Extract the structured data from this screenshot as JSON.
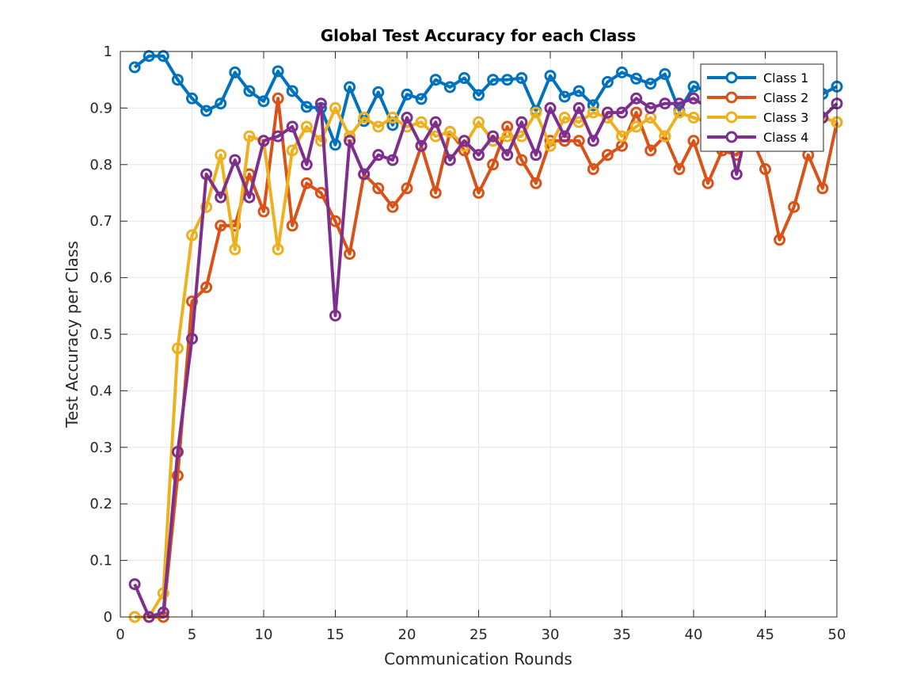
{
  "chart_data": {
    "type": "line",
    "title": "Global Test Accuracy for each Class",
    "xlabel": "Communication Rounds",
    "ylabel": "Test Accuracy per Class",
    "xlim": [
      0,
      50
    ],
    "ylim": [
      0,
      1
    ],
    "grid": true,
    "legend_position": "top-right",
    "x_ticks": [
      "0",
      "5",
      "10",
      "15",
      "20",
      "25",
      "30",
      "35",
      "40",
      "45",
      "50"
    ],
    "y_ticks": [
      "0",
      "0.1",
      "0.2",
      "0.3",
      "0.4",
      "0.5",
      "0.6",
      "0.7",
      "0.8",
      "0.9",
      "1"
    ],
    "x": [
      1,
      2,
      3,
      4,
      5,
      6,
      7,
      8,
      9,
      10,
      11,
      12,
      13,
      14,
      15,
      16,
      17,
      18,
      19,
      20,
      21,
      22,
      23,
      24,
      25,
      26,
      27,
      28,
      29,
      30,
      31,
      32,
      33,
      34,
      35,
      36,
      37,
      38,
      39,
      40,
      41,
      42,
      43,
      44,
      45,
      46,
      47,
      48,
      49,
      50
    ],
    "series": [
      {
        "name": "Class 1",
        "color": "#0072BD",
        "values": [
          0.972,
          0.992,
          0.992,
          0.95,
          0.917,
          0.895,
          0.908,
          0.963,
          0.93,
          0.912,
          0.965,
          0.93,
          0.902,
          0.9,
          0.835,
          0.937,
          0.877,
          0.928,
          0.87,
          0.924,
          0.916,
          0.95,
          0.937,
          0.953,
          0.923,
          0.95,
          0.95,
          0.953,
          0.895,
          0.957,
          0.92,
          0.93,
          0.905,
          0.946,
          0.963,
          0.952,
          0.943,
          0.96,
          0.895,
          0.938,
          0.93,
          0.93,
          0.93,
          0.925,
          0.92,
          0.92,
          0.925,
          0.93,
          0.925,
          0.938
        ]
      },
      {
        "name": "Class 2",
        "color": "#D95319",
        "values": [
          0.0,
          0.0,
          0.0,
          0.25,
          0.558,
          0.583,
          0.692,
          0.692,
          0.783,
          0.717,
          0.917,
          0.692,
          0.767,
          0.75,
          0.7,
          0.642,
          0.783,
          0.758,
          0.725,
          0.758,
          0.833,
          0.75,
          0.858,
          0.825,
          0.75,
          0.8,
          0.867,
          0.808,
          0.767,
          0.842,
          0.842,
          0.842,
          0.792,
          0.817,
          0.833,
          0.892,
          0.825,
          0.85,
          0.792,
          0.842,
          0.767,
          0.825,
          0.817,
          0.85,
          0.792,
          0.667,
          0.725,
          0.817,
          0.758,
          0.875
        ]
      },
      {
        "name": "Class 3",
        "color": "#EDB120",
        "values": [
          0.0,
          0.0,
          0.042,
          0.475,
          0.675,
          0.725,
          0.817,
          0.65,
          0.85,
          0.842,
          0.65,
          0.825,
          0.867,
          0.842,
          0.9,
          0.85,
          0.883,
          0.867,
          0.883,
          0.867,
          0.875,
          0.85,
          0.858,
          0.833,
          0.875,
          0.842,
          0.85,
          0.85,
          0.892,
          0.833,
          0.883,
          0.875,
          0.892,
          0.883,
          0.85,
          0.867,
          0.883,
          0.85,
          0.892,
          0.883,
          0.875,
          0.883,
          0.875,
          0.883,
          0.867,
          0.883,
          0.883,
          0.875,
          0.883,
          0.875
        ]
      },
      {
        "name": "Class 4",
        "color": "#7E2F8E",
        "values": [
          0.058,
          0.0,
          0.008,
          0.292,
          0.492,
          0.783,
          0.742,
          0.808,
          0.742,
          0.842,
          0.85,
          0.867,
          0.8,
          0.908,
          0.533,
          0.842,
          0.783,
          0.817,
          0.808,
          0.883,
          0.833,
          0.875,
          0.808,
          0.842,
          0.817,
          0.85,
          0.817,
          0.875,
          0.817,
          0.9,
          0.85,
          0.9,
          0.842,
          0.892,
          0.892,
          0.917,
          0.9,
          0.908,
          0.908,
          0.917,
          0.9,
          0.908,
          0.783,
          0.9,
          0.908,
          0.892,
          0.883,
          0.892,
          0.883,
          0.908
        ]
      }
    ]
  }
}
